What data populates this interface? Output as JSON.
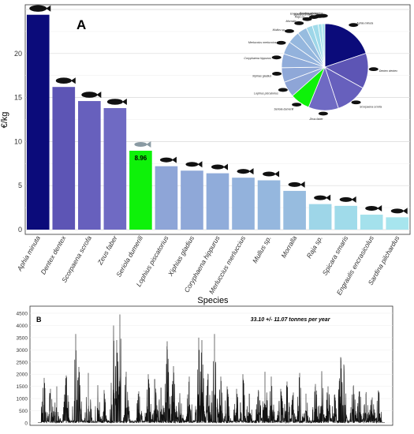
{
  "chart_data": [
    {
      "type": "bar",
      "panel_letter": "A",
      "xlabel": "Species",
      "ylabel": "€/kg",
      "ylim": [
        0,
        25
      ],
      "yticks": [
        0,
        5,
        10,
        15,
        20
      ],
      "grid": true,
      "categories": [
        "Aphia minuta",
        "Dentex dentex",
        "Scorpaena scrofa",
        "Zeus faber",
        "Seriola dumerili",
        "Lophius piscatorius",
        "Xiphias gladius",
        "Coryphaena hippurus",
        "Merluccius merluccius",
        "Mullus sp.",
        "Morralla",
        "Raja sp.",
        "Spicara smaris",
        "Engraulis encrasicolus",
        "Sardina pilchardus"
      ],
      "values": [
        24.4,
        16.2,
        14.6,
        13.8,
        8.96,
        7.2,
        6.7,
        6.4,
        5.9,
        5.6,
        4.4,
        2.9,
        2.7,
        1.7,
        1.4
      ],
      "colors": [
        "#0b0b7a",
        "#5d55b5",
        "#6760bd",
        "#6f6ac3",
        "#0ef209",
        "#8ea5d7",
        "#8fa8d8",
        "#90acda",
        "#93b2dc",
        "#95b7de",
        "#97bcdf",
        "#9ed6e8",
        "#a0dbea",
        "#a4e1ec",
        "#a7e5ee"
      ],
      "highlight_label": "8.96",
      "pie_labels": [
        "Sardina pilchardus",
        "Engraulis encrasicolus",
        "Spicara smaris",
        "Raja sp.",
        "Morralla",
        "Mullus sp.",
        "Merluccius merluccius",
        "Coryphaena hippurus",
        "Xiphias gladius",
        "Lophius piscatorius",
        "Seriola dumerili",
        "Zeus faber",
        "Scorpaena scrofa",
        "Dentex dentex",
        "Aphia minuta"
      ]
    },
    {
      "type": "line",
      "panel_letter": "B",
      "annotation": "33.10 +/- 11.07 tonnes per year",
      "ylim": [
        0,
        4500
      ],
      "yticks": [
        0,
        500,
        1000,
        1500,
        2000,
        2500,
        3000,
        3500,
        4000,
        4500
      ],
      "peaks": [
        [
          2,
          1850
        ],
        [
          4,
          1400
        ],
        [
          6,
          1500
        ],
        [
          9,
          1950
        ],
        [
          12,
          3650
        ],
        [
          13,
          2300
        ],
        [
          16,
          2050
        ],
        [
          19,
          1550
        ],
        [
          21,
          1250
        ],
        [
          24,
          4000
        ],
        [
          25,
          3400
        ],
        [
          26,
          4450
        ],
        [
          28,
          2100
        ],
        [
          32,
          1300
        ],
        [
          35,
          2000
        ],
        [
          37,
          1800
        ],
        [
          39,
          1450
        ],
        [
          41,
          3350
        ],
        [
          43,
          2200
        ],
        [
          45,
          1200
        ],
        [
          48,
          1900
        ],
        [
          51,
          3500
        ],
        [
          52,
          3400
        ],
        [
          54,
          2000
        ],
        [
          56,
          3650
        ],
        [
          58,
          1900
        ],
        [
          60,
          1500
        ],
        [
          63,
          1400
        ],
        [
          65,
          2000
        ],
        [
          67,
          1200
        ],
        [
          70,
          1300
        ],
        [
          72,
          2100
        ],
        [
          74,
          1900
        ],
        [
          77,
          1400
        ],
        [
          79,
          1700
        ],
        [
          81,
          1250
        ],
        [
          83,
          2050
        ],
        [
          85,
          1200
        ],
        [
          88,
          1600
        ],
        [
          90,
          2000
        ],
        [
          92,
          1500
        ],
        [
          94,
          1150
        ],
        [
          96,
          2700
        ],
        [
          97,
          2400
        ],
        [
          100,
          1500
        ],
        [
          102,
          1300
        ],
        [
          104,
          1200
        ],
        [
          106,
          1050
        ],
        [
          108,
          1300
        ]
      ],
      "xrange": [
        0,
        110
      ]
    }
  ]
}
